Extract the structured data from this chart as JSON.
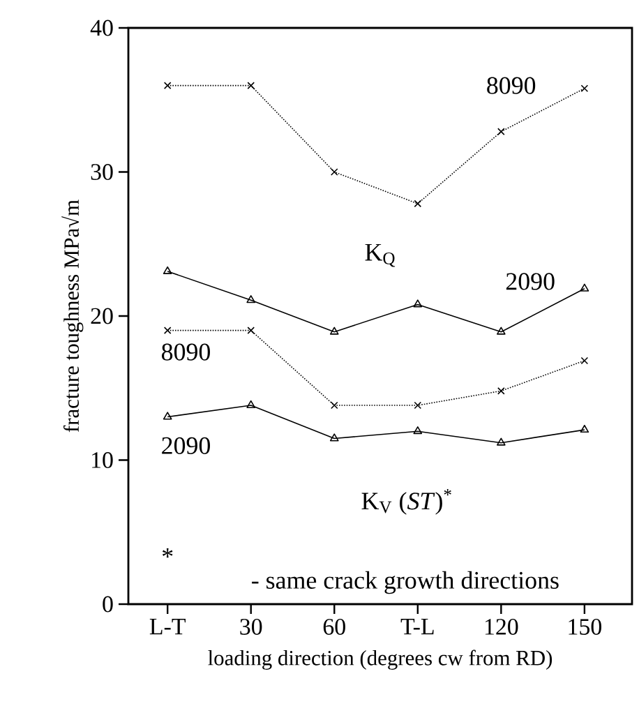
{
  "chart_data": {
    "type": "line",
    "xlabel": "loading direction (degrees cw from RD)",
    "ylabel": "fracture toughness  MPa√m",
    "categories": [
      "L-T",
      "30",
      "60",
      "T-L",
      "120",
      "150"
    ],
    "ylim": [
      0,
      40
    ],
    "yticks": [
      0,
      10,
      20,
      30,
      40
    ],
    "grid": false,
    "legend": "left",
    "series": [
      {
        "name": "8090",
        "color": "#000000",
        "marker": "cross",
        "line_style": "dotted",
        "values": [
          36.0,
          36.0,
          30.0,
          27.8,
          32.8,
          35.8
        ]
      },
      {
        "name": "2090",
        "color": "#000000",
        "marker": "triangle",
        "line_style": "solid",
        "values": [
          23.1,
          21.1,
          18.9,
          20.8,
          18.9,
          21.9
        ]
      },
      {
        "name": "8090",
        "color": "#000000",
        "marker": "cross",
        "line_style": "dotted",
        "values": [
          19.0,
          19.0,
          13.8,
          13.8,
          14.8,
          16.9
        ]
      },
      {
        "name": "2090",
        "color": "#000000",
        "marker": "triangle",
        "line_style": "solid",
        "values": [
          13.0,
          13.8,
          11.5,
          12.0,
          11.2,
          12.1
        ]
      }
    ],
    "annotations": [
      "K$_{Q}$",
      "K$_{V}$ (*ST*)$^{*}$",
      "*",
      "- same crack growth directions"
    ]
  }
}
